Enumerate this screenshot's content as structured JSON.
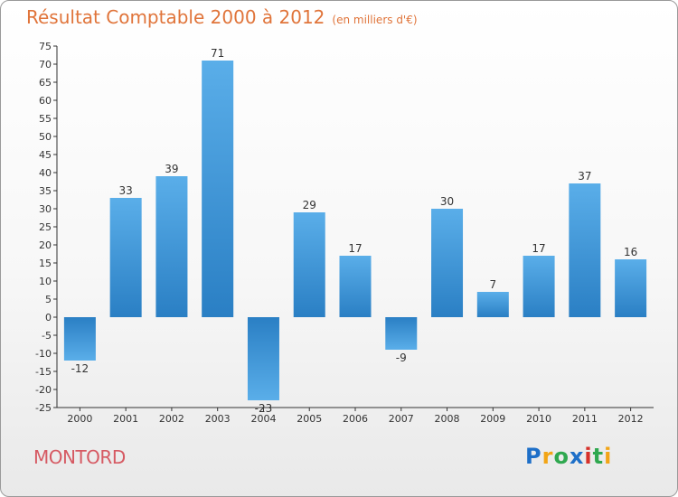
{
  "header": {
    "title": "Résultat Comptable 2000 à 2012",
    "unit": "(en milliers d'€)"
  },
  "footer": {
    "town": "MONTORD",
    "logo_text": "Proxiti",
    "logo_colors": [
      "#1e6fc8",
      "#f2a516",
      "#2fa84f",
      "#1e6fc8",
      "#d6312a",
      "#2fa84f",
      "#f2a516"
    ]
  },
  "colors": {
    "bar_dark": "#2a7fc4",
    "bar_light": "#5aaee9",
    "title": "#e0743a",
    "town": "#d65a63"
  },
  "chart_data": {
    "type": "bar",
    "title": "Résultat Comptable 2000 à 2012",
    "subtitle": "(en milliers d'€)",
    "xlabel": "",
    "ylabel": "",
    "categories": [
      "2000",
      "2001",
      "2002",
      "2003",
      "2004",
      "2005",
      "2006",
      "2007",
      "2008",
      "2009",
      "2010",
      "2011",
      "2012"
    ],
    "values": [
      -12,
      33,
      39,
      71,
      -23,
      29,
      17,
      -9,
      30,
      7,
      17,
      37,
      16
    ],
    "ylim": [
      -25,
      75
    ],
    "ytick_step": 5,
    "grid": false,
    "legend": "none"
  }
}
